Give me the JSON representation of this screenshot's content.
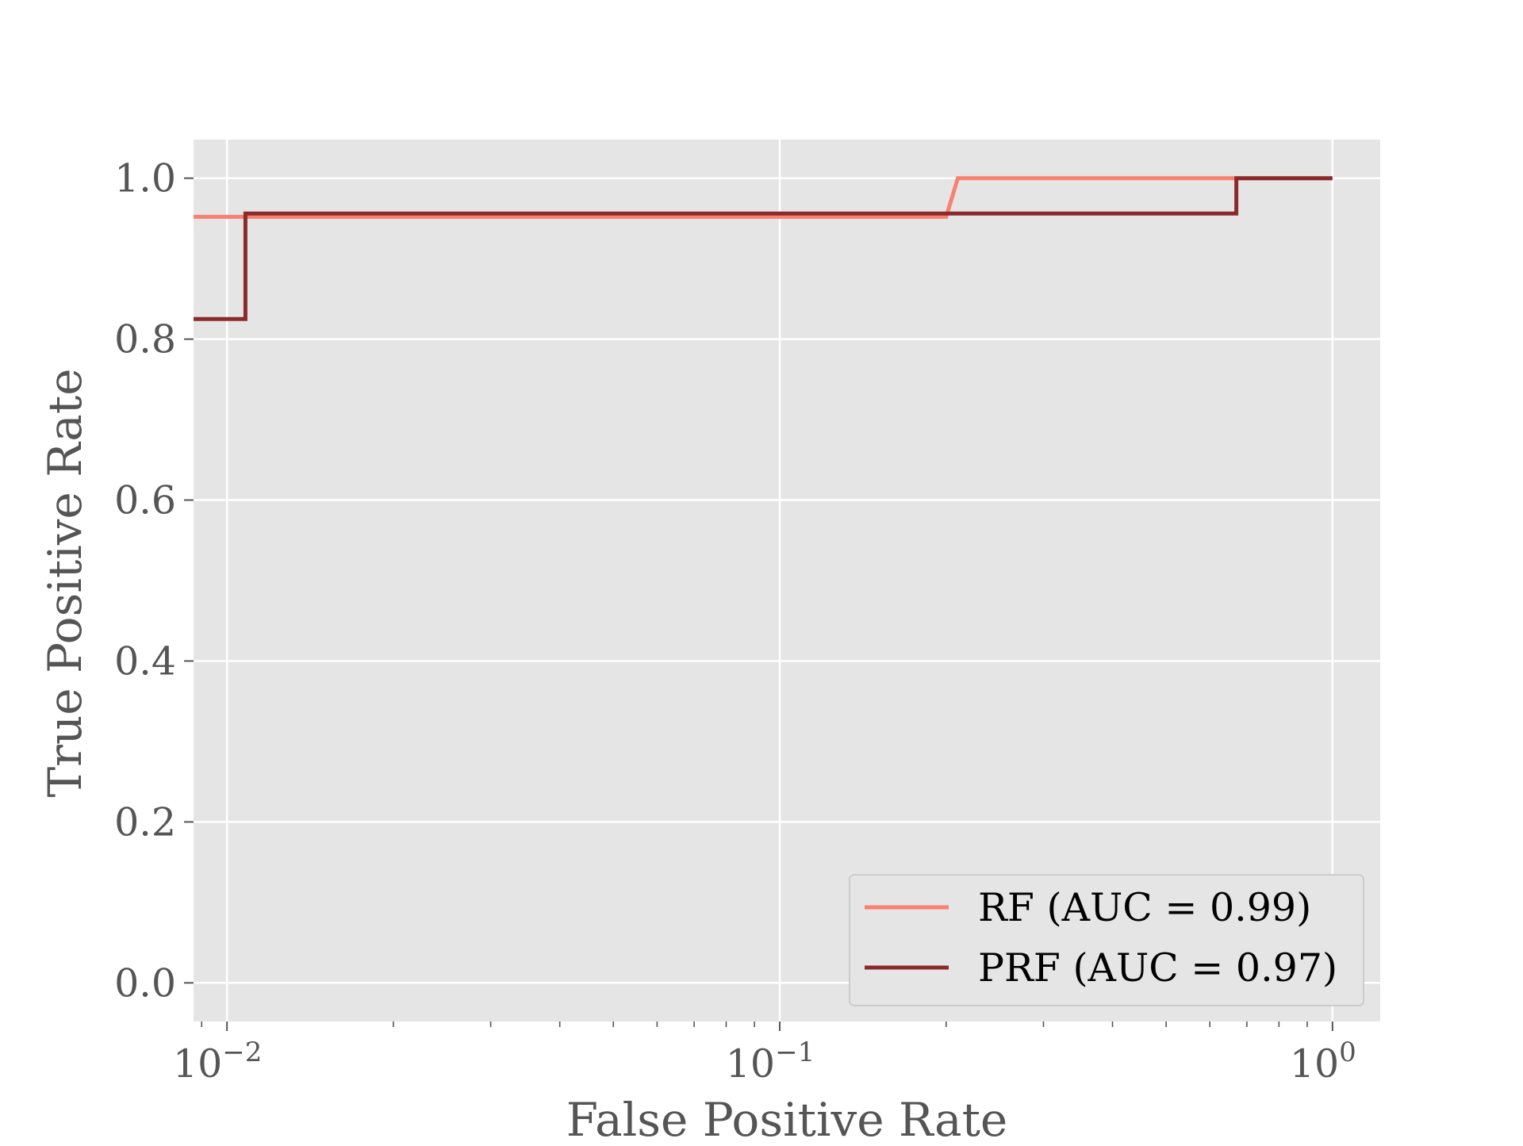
{
  "chart_data": {
    "type": "line",
    "xlabel": "False Positive Rate",
    "ylabel": "True Positive Rate",
    "xscale": "log",
    "xlim": [
      0.0087,
      1.22
    ],
    "ylim": [
      -0.048,
      1.048
    ],
    "grid": true,
    "background_color": "#e5e5e5",
    "legend_position": "lower-right",
    "x_ticks": [
      {
        "value": 0.01,
        "base": "10",
        "exp": "−2"
      },
      {
        "value": 0.1,
        "base": "10",
        "exp": "−1"
      },
      {
        "value": 1,
        "base": "10",
        "exp": "0"
      }
    ],
    "y_ticks": [
      {
        "value": 0.0,
        "label": "0.0"
      },
      {
        "value": 0.2,
        "label": "0.2"
      },
      {
        "value": 0.4,
        "label": "0.4"
      },
      {
        "value": 0.6,
        "label": "0.6"
      },
      {
        "value": 0.8,
        "label": "0.8"
      },
      {
        "value": 1.0,
        "label": "1.0"
      }
    ],
    "series": [
      {
        "name": "RF (AUC = 0.99)",
        "color": "#fa8072",
        "x": [
          0.0087,
          0.2,
          0.21,
          1.0
        ],
        "y": [
          0.952,
          0.952,
          1.0,
          1.0
        ]
      },
      {
        "name": "PRF (AUC = 0.97)",
        "color": "#8b2a2a",
        "x": [
          0.0087,
          0.0108,
          0.0108,
          0.67,
          0.67,
          1.0
        ],
        "y": [
          0.825,
          0.825,
          0.956,
          0.956,
          1.0,
          1.0
        ]
      }
    ]
  }
}
